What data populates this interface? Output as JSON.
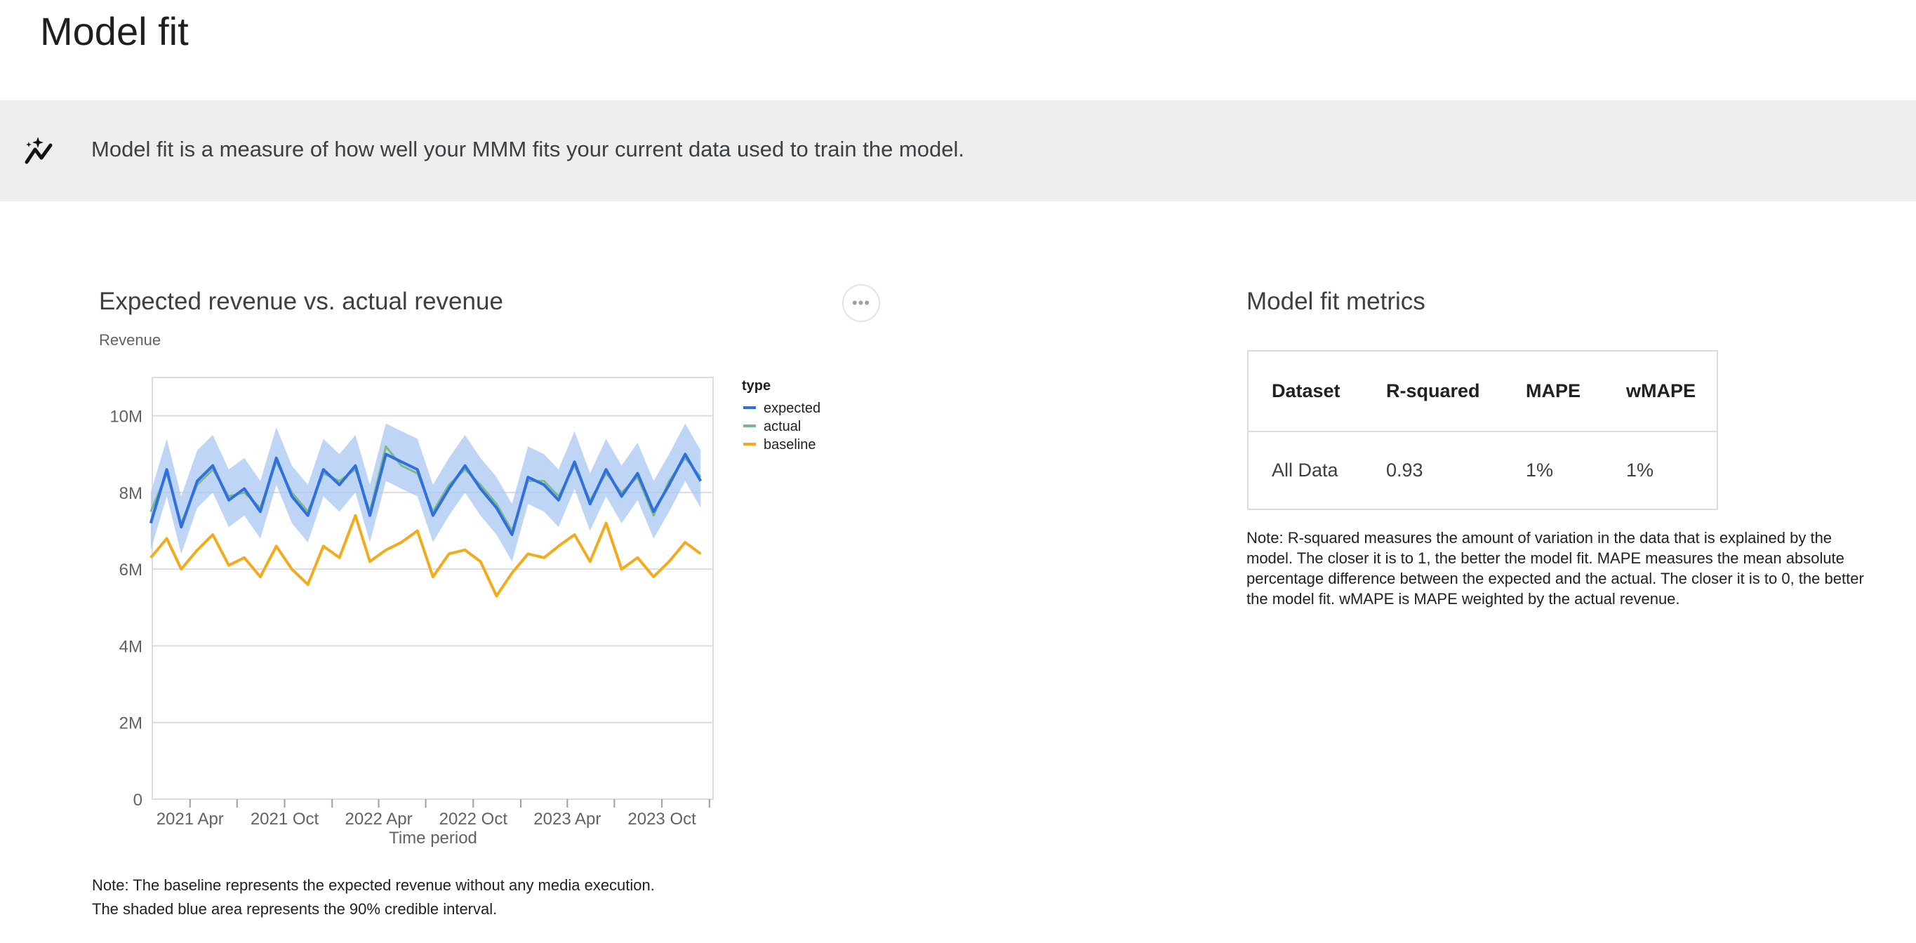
{
  "page": {
    "title": "Model fit"
  },
  "banner": {
    "icon": "insights-sparkle-icon",
    "text": "Model fit is a measure of how well your MMM fits your current data used to train the model."
  },
  "chart_card": {
    "title": "Expected revenue vs. actual revenue",
    "more_button": "•••",
    "note_lines": [
      "Note: The baseline represents the expected revenue without any media execution.",
      "The shaded blue area represents the 90% credible interval."
    ]
  },
  "chart_data": {
    "type": "line",
    "title": "Expected revenue vs. actual revenue",
    "ylabel": "Revenue",
    "xlabel": "Time period",
    "ylim": [
      0,
      11000000
    ],
    "xlim": [
      "2021-01-18",
      "2024-01-08"
    ],
    "y_ticks": [
      {
        "v": 0,
        "label": "0"
      },
      {
        "v": 2000000,
        "label": "2M"
      },
      {
        "v": 4000000,
        "label": "4M"
      },
      {
        "v": 6000000,
        "label": "6M"
      },
      {
        "v": 8000000,
        "label": "8M"
      },
      {
        "v": 10000000,
        "label": "10M"
      }
    ],
    "x_ticks": [
      {
        "date": "2021-04-01",
        "label": "2021 Apr"
      },
      {
        "date": "2021-07-01",
        "label": ""
      },
      {
        "date": "2021-10-01",
        "label": "2021 Oct"
      },
      {
        "date": "2022-01-01",
        "label": ""
      },
      {
        "date": "2022-04-01",
        "label": "2022 Apr"
      },
      {
        "date": "2022-07-01",
        "label": ""
      },
      {
        "date": "2022-10-01",
        "label": "2022 Oct"
      },
      {
        "date": "2023-01-01",
        "label": ""
      },
      {
        "date": "2023-04-01",
        "label": "2023 Apr"
      },
      {
        "date": "2023-07-01",
        "label": ""
      },
      {
        "date": "2023-10-01",
        "label": "2023 Oct"
      },
      {
        "date": "2024-01-01",
        "label": ""
      }
    ],
    "grid": true,
    "legend": {
      "title": "type",
      "position": "right"
    },
    "x": [
      "2021-01",
      "2021-02",
      "2021-03",
      "2021-04",
      "2021-05",
      "2021-06",
      "2021-07",
      "2021-08",
      "2021-09",
      "2021-10",
      "2021-11",
      "2021-12",
      "2022-01",
      "2022-02",
      "2022-03",
      "2022-04",
      "2022-05",
      "2022-06",
      "2022-07",
      "2022-08",
      "2022-09",
      "2022-10",
      "2022-11",
      "2022-12",
      "2023-01",
      "2023-02",
      "2023-03",
      "2023-04",
      "2023-05",
      "2023-06",
      "2023-07",
      "2023-08",
      "2023-09",
      "2023-10",
      "2023-11",
      "2023-12"
    ],
    "series": [
      {
        "name": "expected",
        "color": "#2f6fe0",
        "values": [
          7.2,
          8.6,
          7.1,
          8.3,
          8.7,
          7.8,
          8.1,
          7.5,
          8.9,
          7.9,
          7.4,
          8.6,
          8.2,
          8.7,
          7.4,
          9.0,
          8.8,
          8.6,
          7.4,
          8.1,
          8.7,
          8.1,
          7.6,
          6.9,
          8.4,
          8.2,
          7.8,
          8.8,
          7.7,
          8.6,
          7.9,
          8.5,
          7.5,
          8.2,
          9.0,
          8.3
        ]
      },
      {
        "name": "actual",
        "color": "#7cb987",
        "values": [
          7.5,
          8.5,
          7.2,
          8.2,
          8.6,
          7.9,
          8.0,
          7.6,
          8.8,
          8.0,
          7.5,
          8.5,
          8.3,
          8.6,
          7.5,
          9.2,
          8.7,
          8.5,
          7.5,
          8.2,
          8.6,
          8.2,
          7.7,
          7.0,
          8.3,
          8.3,
          7.9,
          8.7,
          7.8,
          8.5,
          8.0,
          8.4,
          7.4,
          8.3,
          8.9,
          8.4
        ]
      },
      {
        "name": "baseline",
        "color": "#f2ab1c",
        "values": [
          6.3,
          6.8,
          6.0,
          6.5,
          6.9,
          6.1,
          6.3,
          5.8,
          6.6,
          6.0,
          5.6,
          6.6,
          6.3,
          7.4,
          6.2,
          6.5,
          6.7,
          7.0,
          5.8,
          6.4,
          6.5,
          6.2,
          5.3,
          5.9,
          6.4,
          6.3,
          6.6,
          6.9,
          6.2,
          7.2,
          6.0,
          6.3,
          5.8,
          6.2,
          6.7,
          6.4
        ]
      }
    ],
    "units": "millions",
    "credible_interval_90": {
      "color": "#aac7f2",
      "lower": [
        6.5,
        7.9,
        6.4,
        7.6,
        8.0,
        7.1,
        7.4,
        6.8,
        8.2,
        7.2,
        6.7,
        7.9,
        7.5,
        8.0,
        6.7,
        8.3,
        8.1,
        7.9,
        6.7,
        7.4,
        8.0,
        7.4,
        6.9,
        6.2,
        7.7,
        7.5,
        7.1,
        8.1,
        7.0,
        7.9,
        7.2,
        7.8,
        6.8,
        7.5,
        8.3,
        7.6
      ],
      "upper": [
        8.0,
        9.4,
        7.9,
        9.1,
        9.5,
        8.6,
        8.9,
        8.3,
        9.7,
        8.7,
        8.2,
        9.4,
        9.0,
        9.5,
        8.2,
        9.8,
        9.6,
        9.4,
        8.2,
        8.9,
        9.5,
        8.9,
        8.4,
        7.7,
        9.2,
        9.0,
        8.6,
        9.6,
        8.5,
        9.4,
        8.7,
        9.3,
        8.3,
        9.0,
        9.8,
        9.1
      ]
    }
  },
  "metrics": {
    "title": "Model fit metrics",
    "columns": [
      "Dataset",
      "R-squared",
      "MAPE",
      "wMAPE"
    ],
    "rows": [
      [
        "All Data",
        "0.93",
        "1%",
        "1%"
      ]
    ],
    "note": "Note: R-squared measures the amount of variation in the data that is explained by the model. The closer it is to 1, the better the model fit. MAPE measures the mean absolute percentage difference between the expected and the actual. The closer it is to 0, the better the model fit. wMAPE is MAPE weighted by the actual revenue."
  }
}
